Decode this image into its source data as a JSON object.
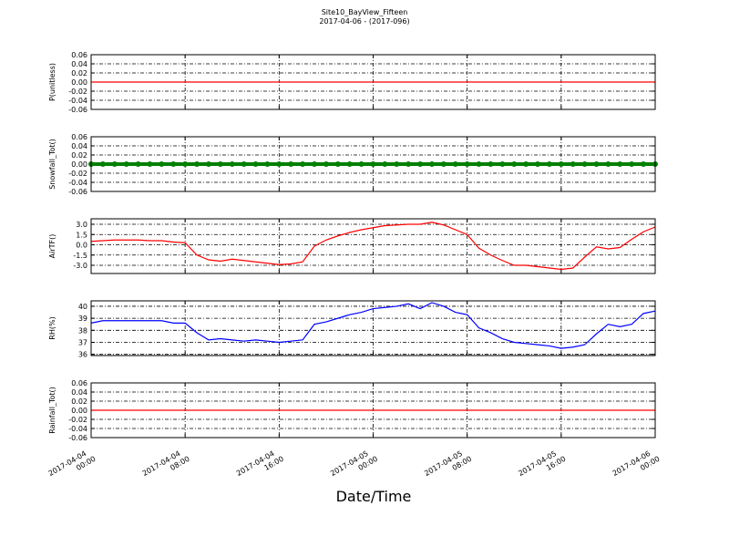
{
  "figure": {
    "title": "Site10_BayView_Fifteen",
    "subtitle": "2017-04-06 - (2017-096)",
    "xlabel": "Date/Time",
    "xlim": [
      "2017-04-04 00:00",
      "2017-04-06 00:00"
    ],
    "xticks": [
      {
        "value": "2017-04-04 00:00",
        "label": [
          "2017-04-04",
          "00:00"
        ]
      },
      {
        "value": "2017-04-04 08:00",
        "label": [
          "2017-04-04",
          "08:00"
        ]
      },
      {
        "value": "2017-04-04 16:00",
        "label": [
          "2017-04-04",
          "16:00"
        ]
      },
      {
        "value": "2017-04-05 00:00",
        "label": [
          "2017-04-05",
          "00:00"
        ]
      },
      {
        "value": "2017-04-05 08:00",
        "label": [
          "2017-04-05",
          "08:00"
        ]
      },
      {
        "value": "2017-04-05 16:00",
        "label": [
          "2017-04-05",
          "16:00"
        ]
      },
      {
        "value": "2017-04-06 00:00",
        "label": [
          "2017-04-06",
          "00:00"
        ]
      }
    ],
    "x": [
      "2017-04-04 00:00",
      "2017-04-04 01:00",
      "2017-04-04 02:00",
      "2017-04-04 03:00",
      "2017-04-04 04:00",
      "2017-04-04 05:00",
      "2017-04-04 06:00",
      "2017-04-04 07:00",
      "2017-04-04 08:00",
      "2017-04-04 09:00",
      "2017-04-04 10:00",
      "2017-04-04 11:00",
      "2017-04-04 12:00",
      "2017-04-04 13:00",
      "2017-04-04 14:00",
      "2017-04-04 15:00",
      "2017-04-04 16:00",
      "2017-04-04 17:00",
      "2017-04-04 18:00",
      "2017-04-04 19:00",
      "2017-04-04 20:00",
      "2017-04-04 21:00",
      "2017-04-04 22:00",
      "2017-04-04 23:00",
      "2017-04-05 00:00",
      "2017-04-05 01:00",
      "2017-04-05 02:00",
      "2017-04-05 03:00",
      "2017-04-05 04:00",
      "2017-04-05 05:00",
      "2017-04-05 06:00",
      "2017-04-05 07:00",
      "2017-04-05 08:00",
      "2017-04-05 09:00",
      "2017-04-05 10:00",
      "2017-04-05 11:00",
      "2017-04-05 12:00",
      "2017-04-05 13:00",
      "2017-04-05 14:00",
      "2017-04-05 15:00",
      "2017-04-05 16:00",
      "2017-04-05 17:00",
      "2017-04-05 18:00",
      "2017-04-05 19:00",
      "2017-04-05 20:00",
      "2017-04-05 21:00",
      "2017-04-05 22:00",
      "2017-04-05 23:00",
      "2017-04-06 00:00"
    ]
  },
  "chart_data": [
    {
      "type": "line",
      "ylabel": "P(unitless)",
      "color": "#ff0000",
      "grid": true,
      "ylim": [
        -0.06,
        0.06
      ],
      "yticks": [
        0.06,
        0.04,
        0.02,
        {
          "value": 0,
          "label": "0.00"
        },
        -0.02,
        -0.04,
        -0.06
      ],
      "values": [
        0,
        0,
        0,
        0,
        0,
        0,
        0,
        0,
        0,
        0,
        0,
        0,
        0,
        0,
        0,
        0,
        0,
        0,
        0,
        0,
        0,
        0,
        0,
        0,
        0,
        0,
        0,
        0,
        0,
        0,
        0,
        0,
        0,
        0,
        0,
        0,
        0,
        0,
        0,
        0,
        0,
        0,
        0,
        0,
        0,
        0,
        0,
        0,
        0
      ]
    },
    {
      "type": "scatter",
      "ylabel": "Snowfall_Tot()",
      "color": "#008000",
      "grid": true,
      "ylim": [
        -0.06,
        0.06
      ],
      "yticks": [
        0.06,
        0.04,
        0.02,
        {
          "value": 0,
          "label": "0.00"
        },
        -0.02,
        -0.04,
        -0.06
      ],
      "values": [
        0,
        0,
        0,
        0,
        0,
        0,
        0,
        0,
        0,
        0,
        0,
        0,
        0,
        0,
        0,
        0,
        0,
        0,
        0,
        0,
        0,
        0,
        0,
        0,
        0,
        0,
        0,
        0,
        0,
        0,
        0,
        0,
        0,
        0,
        0,
        0,
        0,
        0,
        0,
        0,
        0,
        0,
        0,
        0,
        0,
        0,
        0,
        0,
        0
      ]
    },
    {
      "type": "line",
      "ylabel": "AirTF()",
      "color": "#ff0000",
      "grid": true,
      "ylim": [
        -4.2,
        3.8
      ],
      "yticks": [
        {
          "value": 3,
          "label": "3.0"
        },
        1.5,
        {
          "value": 0,
          "label": "0.0"
        },
        -1.5,
        {
          "value": -3,
          "label": "-3.0"
        }
      ],
      "values": [
        0.5,
        0.6,
        0.7,
        0.7,
        0.7,
        0.6,
        0.6,
        0.4,
        0.3,
        -1.5,
        -2.2,
        -2.4,
        -2.1,
        -2.3,
        -2.5,
        -2.7,
        -2.9,
        -2.8,
        -2.5,
        -0.2,
        0.7,
        1.3,
        1.8,
        2.2,
        2.5,
        2.8,
        2.9,
        3.0,
        3.0,
        3.3,
        2.9,
        2.2,
        1.5,
        -0.5,
        -1.5,
        -2.3,
        -3.0,
        -3.0,
        -3.2,
        -3.4,
        -3.6,
        -3.4,
        -1.8,
        -0.3,
        -0.6,
        -0.4,
        0.8,
        1.9,
        2.6
      ]
    },
    {
      "type": "line",
      "ylabel": "RH(%)",
      "color": "#0000ff",
      "grid": true,
      "ylim": [
        35.9,
        40.45
      ],
      "yticks": [
        40,
        39,
        38,
        37,
        36
      ],
      "values": [
        38.6,
        38.8,
        38.8,
        38.8,
        38.8,
        38.8,
        38.8,
        38.6,
        38.6,
        37.8,
        37.2,
        37.3,
        37.2,
        37.1,
        37.2,
        37.1,
        37.0,
        37.1,
        37.2,
        38.5,
        38.7,
        39.0,
        39.3,
        39.5,
        39.8,
        39.9,
        40.0,
        40.2,
        39.8,
        40.3,
        40.0,
        39.5,
        39.3,
        38.2,
        37.8,
        37.3,
        37.0,
        36.9,
        36.8,
        36.7,
        36.5,
        36.6,
        36.8,
        37.7,
        38.5,
        38.3,
        38.5,
        39.4,
        39.6
      ]
    },
    {
      "type": "line",
      "ylabel": "Rainfall_Tot()",
      "color": "#ff0000",
      "grid": true,
      "ylim": [
        -0.06,
        0.06
      ],
      "yticks": [
        0.06,
        0.04,
        0.02,
        {
          "value": 0,
          "label": "0.00"
        },
        -0.02,
        -0.04,
        -0.06
      ],
      "values": [
        0,
        0,
        0,
        0,
        0,
        0,
        0,
        0,
        0,
        0,
        0,
        0,
        0,
        0,
        0,
        0,
        0,
        0,
        0,
        0,
        0,
        0,
        0,
        0,
        0,
        0,
        0,
        0,
        0,
        0,
        0,
        0,
        0,
        0,
        0,
        0,
        0,
        0,
        0,
        0,
        0,
        0,
        0,
        0,
        0,
        0,
        0,
        0,
        0
      ]
    }
  ]
}
